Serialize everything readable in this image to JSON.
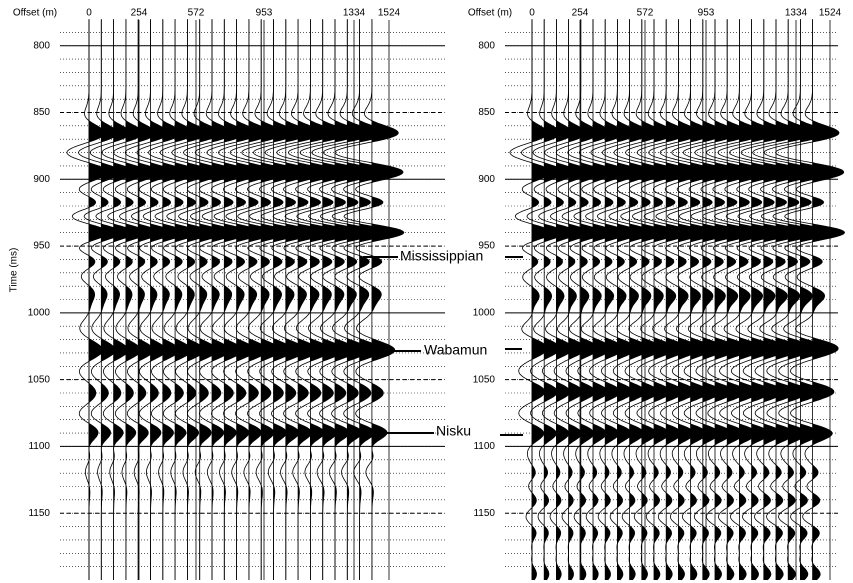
{
  "chart_data": [
    {
      "type": "seismic",
      "x_label": "Offset (m)",
      "y_label": "Time (ms)",
      "xticks": [
        0,
        254,
        572,
        953,
        1334,
        1524
      ],
      "ylim": [
        780,
        1200
      ],
      "yticks": [
        800,
        850,
        900,
        950,
        1000,
        1050,
        1100,
        1150
      ]
    },
    {
      "type": "seismic",
      "x_label": "Offset (m)",
      "xticks": [
        0,
        254,
        572,
        953,
        1334,
        1524
      ],
      "ylim": [
        780,
        1200
      ],
      "yticks": [
        800,
        850,
        900,
        950,
        1000,
        1050,
        1100,
        1150
      ]
    }
  ],
  "annotations": [
    "Mississippian",
    "Wabamun",
    "Nisku"
  ]
}
